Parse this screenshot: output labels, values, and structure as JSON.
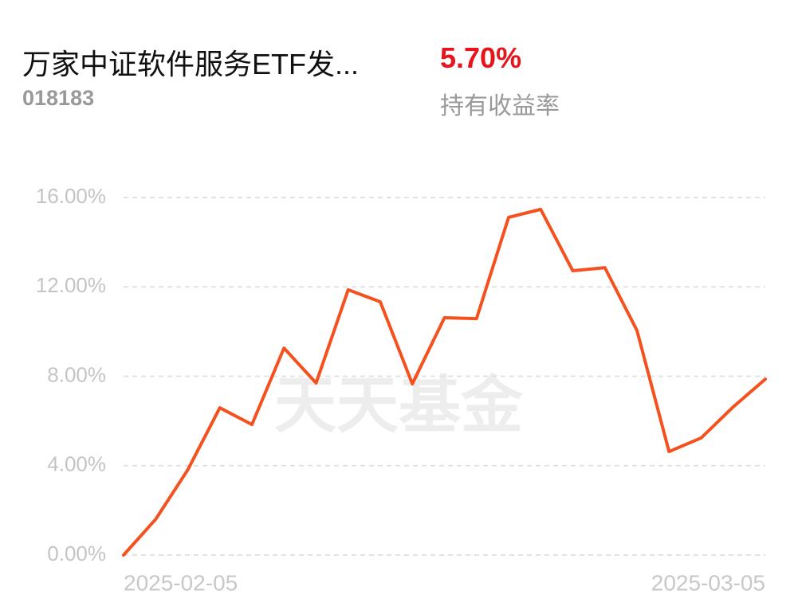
{
  "header": {
    "title": "万家中证软件服务ETF发...",
    "code": "018183",
    "return": "5.70%",
    "return_label": "持有收益率"
  },
  "chart_data": {
    "type": "line",
    "watermark": "天天基金",
    "categories": [
      "2025-02-05",
      null,
      null,
      null,
      null,
      null,
      null,
      null,
      null,
      null,
      null,
      null,
      null,
      null,
      null,
      null,
      null,
      null,
      null,
      null,
      "2025-03-05"
    ],
    "series": [
      {
        "name": null,
        "color": "#f4511e",
        "values": [
          0,
          1.6,
          3.81,
          6.59,
          5.84,
          9.26,
          7.7,
          11.87,
          11.33,
          7.66,
          10.62,
          10.58,
          15.11,
          15.47,
          12.72,
          12.86,
          10.05,
          4.63,
          5.24,
          6.63,
          7.87
        ]
      }
    ],
    "ylim": [
      0,
      16
    ],
    "yticks": [
      {
        "value": 0,
        "label": "0.00%"
      },
      {
        "value": 4,
        "label": "4.00%"
      },
      {
        "value": 8,
        "label": "8.00%"
      },
      {
        "value": 12,
        "label": "12.00%"
      },
      {
        "value": 16,
        "label": "16.00%"
      }
    ],
    "grid": true
  }
}
